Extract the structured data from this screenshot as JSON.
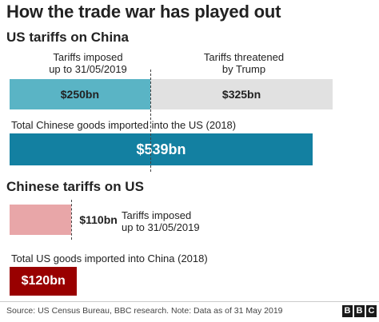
{
  "header": {
    "title": "How the trade war has played out"
  },
  "colors": {
    "us_imposed": "#5ab4c5",
    "us_threatened": "#e1e1e1",
    "us_total": "#1380a1",
    "cn_imposed": "#e8a6a8",
    "cn_total": "#990000"
  },
  "chart_data": [
    {
      "type": "bar",
      "title": "US tariffs on China",
      "orientation": "horizontal",
      "series": [
        {
          "name": "Tariffs imposed up to 31/05/2019",
          "value": 250,
          "label": "$250bn"
        },
        {
          "name": "Tariffs threatened by Trump",
          "value": 325,
          "label": "$325bn"
        }
      ],
      "total": {
        "name": "Total Chinese goods imported into the US (2018)",
        "value": 539,
        "label": "$539bn"
      },
      "legend_lines": {
        "imposed": [
          "Tariffs imposed",
          "up to 31/05/2019"
        ],
        "threatened": [
          "Tariffs threatened",
          "by Trump"
        ]
      }
    },
    {
      "type": "bar",
      "title": "Chinese tariffs on US",
      "orientation": "horizontal",
      "series": [
        {
          "name": "Tariffs imposed up to 31/05/2019",
          "value": 110,
          "label": "$110bn"
        }
      ],
      "total": {
        "name": "Total US goods imported into China (2018)",
        "value": 120,
        "label": "$120bn"
      },
      "legend_lines": {
        "imposed": [
          "Tariffs imposed",
          "up to 31/05/2019"
        ]
      }
    }
  ],
  "footer": {
    "source": "Source: US Census Bureau, BBC research. Note: Data as of 31 May 2019",
    "logo": [
      "B",
      "B",
      "C"
    ]
  }
}
